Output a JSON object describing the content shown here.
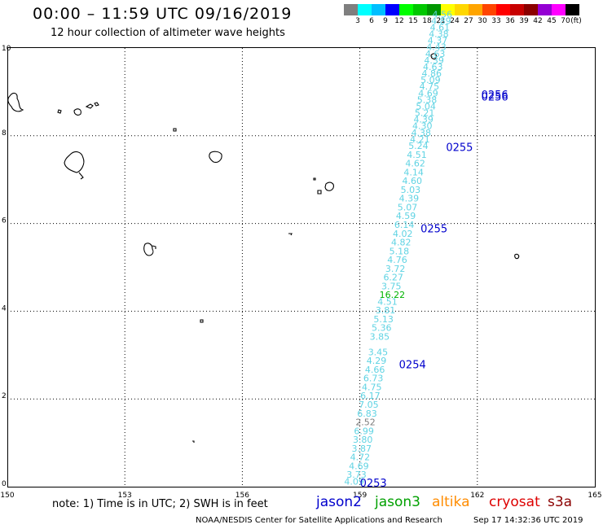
{
  "header": {
    "title": "00:00 – 11:59 UTC 09/16/2019",
    "subtitle": "12 hour collection of altimeter wave heights"
  },
  "colorbar": {
    "colors": [
      "#7f7f7f",
      "#00ffff",
      "#00bfff",
      "#0000ff",
      "#00ff00",
      "#00c800",
      "#009600",
      "#ffff00",
      "#ffd700",
      "#ffa500",
      "#ff4500",
      "#ff0000",
      "#c80000",
      "#8b0000",
      "#9400d3",
      "#ff00ff",
      "#000000"
    ],
    "labels": [
      "3",
      "6",
      "9",
      "12",
      "15",
      "18",
      "21",
      "24",
      "27",
      "30",
      "33",
      "36",
      "39",
      "42",
      "45",
      "70",
      "(ft)"
    ]
  },
  "axes": {
    "x_ticks": [
      "150",
      "153",
      "156",
      "159",
      "162",
      "165"
    ],
    "y_ticks": [
      "0",
      "2",
      "4",
      "6",
      "8",
      "10"
    ],
    "lon_range": [
      150,
      165
    ],
    "lat_range": [
      0,
      10
    ]
  },
  "chart_data": {
    "type": "scatter",
    "track_color": "#5fd3e3",
    "wave_heights": [
      {
        "lon": 158.6,
        "lat": 0.05,
        "v": "4.09"
      },
      {
        "lon": 158.66,
        "lat": 0.2,
        "v": "3.73"
      },
      {
        "lon": 158.72,
        "lat": 0.4,
        "v": "4.69"
      },
      {
        "lon": 158.75,
        "lat": 0.6,
        "v": "4.72"
      },
      {
        "lon": 158.79,
        "lat": 0.8,
        "v": "3.87"
      },
      {
        "lon": 158.82,
        "lat": 1.0,
        "v": "3.80"
      },
      {
        "lon": 158.85,
        "lat": 1.2,
        "v": "6.99"
      },
      {
        "lon": 158.89,
        "lat": 1.4,
        "v": "2.52",
        "color": "#7f7f7f"
      },
      {
        "lon": 158.93,
        "lat": 1.6,
        "v": "6.83"
      },
      {
        "lon": 158.97,
        "lat": 1.8,
        "v": "7.05"
      },
      {
        "lon": 159.01,
        "lat": 2.0,
        "v": "6.17"
      },
      {
        "lon": 159.05,
        "lat": 2.2,
        "v": "4.75"
      },
      {
        "lon": 159.09,
        "lat": 2.4,
        "v": "6.73"
      },
      {
        "lon": 159.13,
        "lat": 2.6,
        "v": "4.66"
      },
      {
        "lon": 159.17,
        "lat": 2.8,
        "v": "4.29"
      },
      {
        "lon": 159.21,
        "lat": 3.0,
        "v": "3.45"
      },
      {
        "lon": 159.25,
        "lat": 3.35,
        "v": "3.85"
      },
      {
        "lon": 159.3,
        "lat": 3.55,
        "v": "5.36"
      },
      {
        "lon": 159.35,
        "lat": 3.75,
        "v": "5.13"
      },
      {
        "lon": 159.4,
        "lat": 3.95,
        "v": "3.81"
      },
      {
        "lon": 159.45,
        "lat": 4.15,
        "v": "4.51"
      },
      {
        "lon": 159.5,
        "lat": 4.3,
        "v": "16.22",
        "color": "#00b400"
      },
      {
        "lon": 159.55,
        "lat": 4.5,
        "v": "3.75"
      },
      {
        "lon": 159.6,
        "lat": 4.7,
        "v": "6.27"
      },
      {
        "lon": 159.65,
        "lat": 4.9,
        "v": "3.72"
      },
      {
        "lon": 159.7,
        "lat": 5.1,
        "v": "4.76"
      },
      {
        "lon": 159.75,
        "lat": 5.3,
        "v": "5.18"
      },
      {
        "lon": 159.8,
        "lat": 5.5,
        "v": "4.82"
      },
      {
        "lon": 159.84,
        "lat": 5.7,
        "v": "4.02"
      },
      {
        "lon": 159.88,
        "lat": 5.9,
        "v": "6.14"
      },
      {
        "lon": 159.92,
        "lat": 6.1,
        "v": "4.59"
      },
      {
        "lon": 159.96,
        "lat": 6.3,
        "v": "5.07"
      },
      {
        "lon": 160.0,
        "lat": 6.5,
        "v": "4.39"
      },
      {
        "lon": 160.04,
        "lat": 6.7,
        "v": "5.03"
      },
      {
        "lon": 160.08,
        "lat": 6.9,
        "v": "4.60"
      },
      {
        "lon": 160.12,
        "lat": 7.1,
        "v": "4.14"
      },
      {
        "lon": 160.16,
        "lat": 7.3,
        "v": "4.62"
      },
      {
        "lon": 160.2,
        "lat": 7.5,
        "v": "4.51"
      },
      {
        "lon": 160.24,
        "lat": 7.7,
        "v": "5.24"
      },
      {
        "lon": 160.28,
        "lat": 7.85,
        "v": "4.21"
      },
      {
        "lon": 160.31,
        "lat": 8.0,
        "v": "4.38"
      },
      {
        "lon": 160.34,
        "lat": 8.15,
        "v": "4.30"
      },
      {
        "lon": 160.37,
        "lat": 8.3,
        "v": "4.39"
      },
      {
        "lon": 160.4,
        "lat": 8.45,
        "v": "5.21"
      },
      {
        "lon": 160.43,
        "lat": 8.6,
        "v": "5.04"
      },
      {
        "lon": 160.46,
        "lat": 8.75,
        "v": "5.38"
      },
      {
        "lon": 160.49,
        "lat": 8.9,
        "v": "4.69"
      },
      {
        "lon": 160.52,
        "lat": 9.05,
        "v": "4.75"
      },
      {
        "lon": 160.55,
        "lat": 9.2,
        "v": "5.09"
      },
      {
        "lon": 160.58,
        "lat": 9.35,
        "v": "4.86"
      },
      {
        "lon": 160.61,
        "lat": 9.5,
        "v": "4.63"
      },
      {
        "lon": 160.64,
        "lat": 9.65,
        "v": "4.39"
      },
      {
        "lon": 160.67,
        "lat": 9.8,
        "v": "4.63"
      },
      {
        "lon": 160.7,
        "lat": 9.95,
        "v": "4.43"
      },
      {
        "lon": 160.73,
        "lat": 10.1,
        "v": "4.37"
      },
      {
        "lon": 160.76,
        "lat": 10.25,
        "v": "4.38"
      },
      {
        "lon": 160.79,
        "lat": 10.4,
        "v": "4.61"
      },
      {
        "lon": 160.82,
        "lat": 10.55,
        "v": "4.89"
      },
      {
        "lon": 160.85,
        "lat": 10.7,
        "v": "4.56"
      }
    ],
    "pass_times": [
      {
        "lon": 159.0,
        "lat": 0.0,
        "v": "0253"
      },
      {
        "lon": 160.0,
        "lat": 2.7,
        "v": "0254"
      },
      {
        "lon": 160.55,
        "lat": 5.8,
        "v": "0255"
      },
      {
        "lon": 161.2,
        "lat": 7.65,
        "v": "0255"
      },
      {
        "lon": 162.1,
        "lat": 8.85,
        "v": "0256"
      },
      {
        "lon": 162.1,
        "lat": 8.8,
        "v": "0256"
      }
    ],
    "pass_time_color": "#0000cc"
  },
  "footer": {
    "note": "note: 1) Time is in UTC; 2) SWH is in feet",
    "legend": [
      {
        "label": "jason2",
        "color": "#0000cc"
      },
      {
        "label": "jason3",
        "color": "#00a000"
      },
      {
        "label": "altika",
        "color": "#ff8c00"
      },
      {
        "label": "cryosat",
        "color": "#dd0000"
      },
      {
        "label": "s3a",
        "color": "#8b0000"
      }
    ],
    "source": "NOAA/NESDIS Center for Satellite Applications and Research",
    "timestamp": "Sep 17 14:32:36 UTC 2019"
  }
}
